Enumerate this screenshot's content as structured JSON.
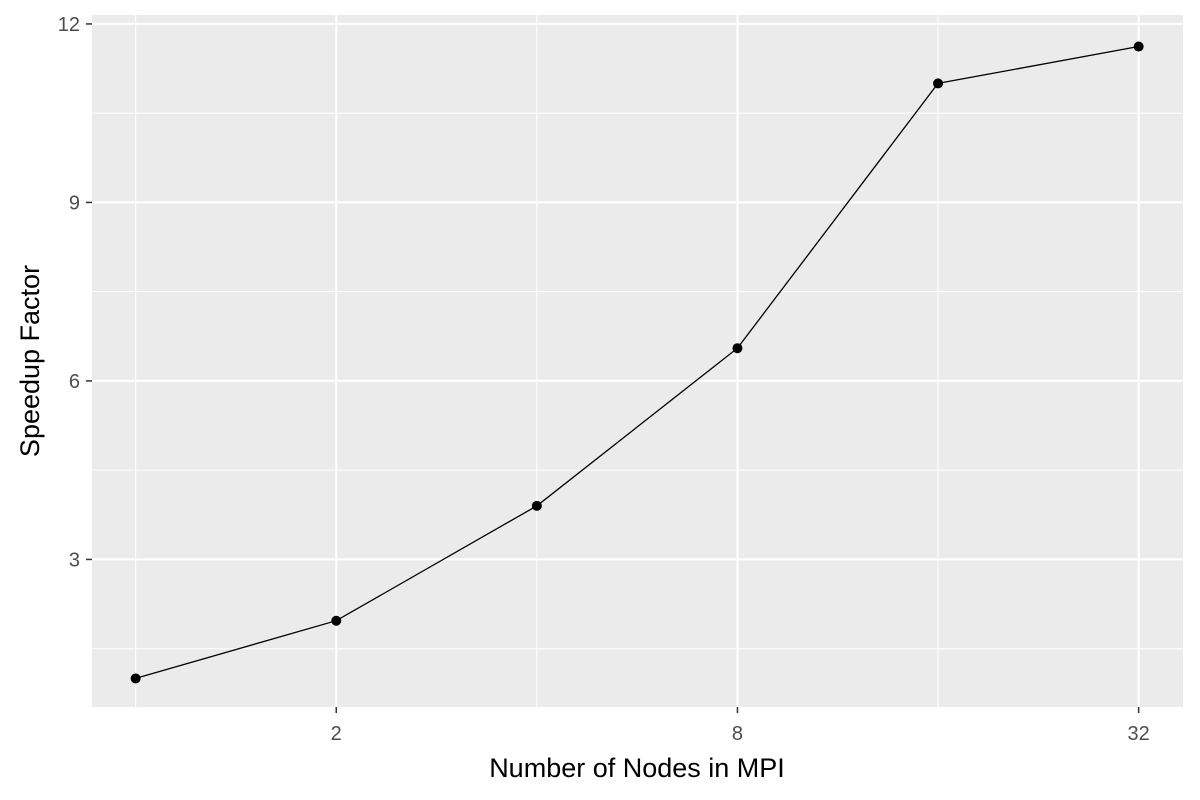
{
  "chart_data": {
    "type": "line",
    "xlabel": "Number of Nodes in MPI",
    "ylabel": "Speedup Factor",
    "x_scale": "log2",
    "x_tick_labels": [
      "2",
      "8",
      "32"
    ],
    "y_tick_labels": [
      "3",
      "6",
      "9",
      "12"
    ],
    "xlim": [
      0.86,
      37.3
    ],
    "ylim": [
      0.52,
      12.15
    ],
    "grid": true,
    "legend": "none",
    "series": [
      {
        "x": [
          1,
          2,
          4,
          8,
          16,
          32
        ],
        "y": [
          1.0,
          1.97,
          3.9,
          6.55,
          11.0,
          11.62
        ]
      }
    ],
    "colors": {
      "panel_background": "#ebebeb",
      "grid_line": "#ffffff",
      "series_line": "#000000",
      "point": "#000000"
    }
  }
}
